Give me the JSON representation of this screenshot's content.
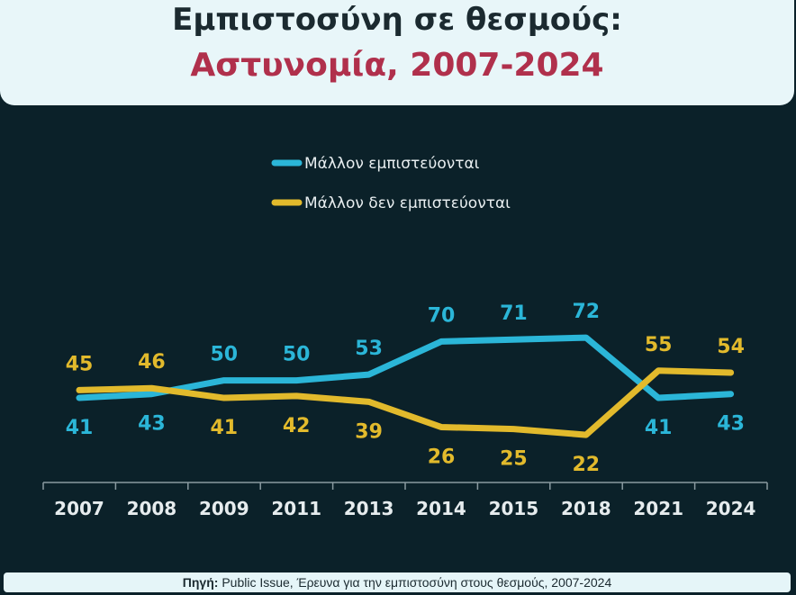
{
  "title": {
    "line1": "Εμπιστοσύνη σε θεσμούς:",
    "line2": "Αστυνομία, 2007-2024"
  },
  "chart_data": {
    "type": "line",
    "categories": [
      "2007",
      "2008",
      "2009",
      "2011",
      "2013",
      "2014",
      "2015",
      "2018",
      "2021",
      "2024"
    ],
    "series": [
      {
        "name": "Μάλλον εμπιστεύονται",
        "color": "#2bb6d8",
        "values": [
          41,
          43,
          50,
          50,
          53,
          70,
          71,
          72,
          41,
          43
        ]
      },
      {
        "name": "Μάλλον δεν εμπιστεύονται",
        "color": "#e2ba2c",
        "values": [
          45,
          46,
          41,
          42,
          39,
          26,
          25,
          22,
          55,
          54
        ]
      }
    ],
    "legend": "top-center",
    "grid": false,
    "data_labels": true
  },
  "footer": {
    "label": "Πηγή:",
    "text": " Public Issue, Έρευνα για την εμπιστοσύνη στους θεσμούς, 2007-2024"
  }
}
